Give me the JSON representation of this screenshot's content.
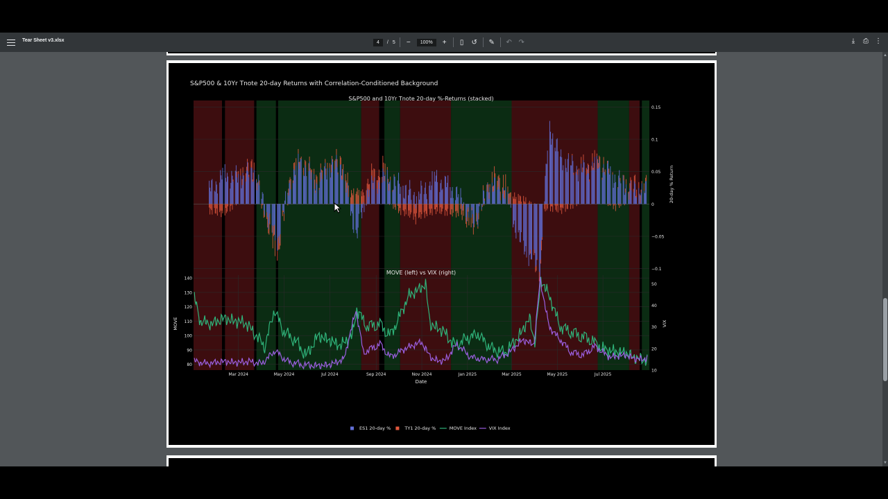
{
  "toolbar": {
    "title": "Tear Sheet v3.xlsx",
    "page_current": "4",
    "page_total": "5",
    "page_sep": "/",
    "zoom": "100%",
    "icons": [
      "menu-icon",
      "zoom-out-icon",
      "zoom-in-icon",
      "fit-page-icon",
      "rotate-icon",
      "annotate-icon",
      "undo-icon",
      "redo-icon",
      "download-icon",
      "print-icon",
      "more-icon"
    ]
  },
  "chart_data": {
    "type": "line",
    "title": "S&P500 & 10Yr Tnote 20-day Returns with Correlation-Conditioned Background",
    "panels": [
      {
        "subtitle": "S&P500 and 10Yr Tnote 20-day %-Returns (stacked)",
        "type": "bar",
        "ylabel": "20-day % Return",
        "y_side": "right",
        "ylim": [
          -0.11,
          0.16
        ],
        "yticks": [
          0.15,
          0.1,
          0.05,
          0,
          -0.05,
          -0.1
        ],
        "ytick_labels": [
          "0.15",
          "0.1",
          "0.05",
          "0",
          "−0.05",
          "−0.1"
        ],
        "series": [
          {
            "name": "ES1 20-day %",
            "color": "#6370d8",
            "points": [
              [
                "2024-01-22",
                0.02
              ],
              [
                "2024-02-10",
                0.045
              ],
              [
                "2024-03-01",
                0.04
              ],
              [
                "2024-03-22",
                0.05
              ],
              [
                "2024-04-12",
                -0.03
              ],
              [
                "2024-04-22",
                -0.06
              ],
              [
                "2024-05-10",
                0.04
              ],
              [
                "2024-05-24",
                0.065
              ],
              [
                "2024-06-14",
                0.03
              ],
              [
                "2024-06-28",
                0.055
              ],
              [
                "2024-07-16",
                0.06
              ],
              [
                "2024-08-06",
                -0.05
              ],
              [
                "2024-08-20",
                0.02
              ],
              [
                "2024-09-10",
                0.04
              ],
              [
                "2024-10-01",
                0.03
              ],
              [
                "2024-10-25",
                0.01
              ],
              [
                "2024-11-20",
                0.04
              ],
              [
                "2024-12-16",
                0.02
              ],
              [
                "2025-01-10",
                -0.03
              ],
              [
                "2025-01-31",
                0.03
              ],
              [
                "2025-02-20",
                0.02
              ],
              [
                "2025-03-13",
                -0.06
              ],
              [
                "2025-04-08",
                -0.1
              ],
              [
                "2025-04-20",
                0.12
              ],
              [
                "2025-05-06",
                0.07
              ],
              [
                "2025-06-02",
                0.05
              ],
              [
                "2025-06-27",
                0.06
              ],
              [
                "2025-07-18",
                0.04
              ],
              [
                "2025-08-08",
                0.02
              ],
              [
                "2025-08-28",
                0.02
              ]
            ]
          },
          {
            "name": "TY1 20-day %",
            "color": "#e1583e",
            "points": [
              [
                "2024-01-22",
                -0.01
              ],
              [
                "2024-02-10",
                -0.015
              ],
              [
                "2024-03-01",
                0.005
              ],
              [
                "2024-03-22",
                0.01
              ],
              [
                "2024-04-12",
                -0.015
              ],
              [
                "2024-04-22",
                -0.02
              ],
              [
                "2024-05-10",
                0.01
              ],
              [
                "2024-05-24",
                0.005
              ],
              [
                "2024-06-14",
                0.01
              ],
              [
                "2024-06-28",
                0.005
              ],
              [
                "2024-07-16",
                0.01
              ],
              [
                "2024-08-06",
                0.02
              ],
              [
                "2024-08-20",
                0.015
              ],
              [
                "2024-09-10",
                0.015
              ],
              [
                "2024-10-01",
                -0.01
              ],
              [
                "2024-10-25",
                -0.02
              ],
              [
                "2024-11-20",
                -0.01
              ],
              [
                "2024-12-16",
                -0.015
              ],
              [
                "2025-01-10",
                -0.01
              ],
              [
                "2025-01-31",
                0.01
              ],
              [
                "2025-02-20",
                0.015
              ],
              [
                "2025-03-13",
                0.01
              ],
              [
                "2025-04-08",
                -0.01
              ],
              [
                "2025-04-20",
                -0.005
              ],
              [
                "2025-05-06",
                -0.01
              ],
              [
                "2025-06-02",
                0.005
              ],
              [
                "2025-06-27",
                0.01
              ],
              [
                "2025-07-18",
                -0.005
              ],
              [
                "2025-08-08",
                0.01
              ],
              [
                "2025-08-28",
                0.005
              ]
            ]
          }
        ]
      },
      {
        "subtitle": "MOVE (left) vs VIX (right)",
        "type": "line",
        "xlabel": "Date",
        "ylabel_left": "MOVE",
        "ylabel_right": "VIX",
        "ylim_left": [
          76,
          142
        ],
        "ylim_right": [
          10,
          54
        ],
        "yticks_left": [
          140,
          130,
          120,
          110,
          100,
          90,
          80
        ],
        "yticks_right": [
          50,
          40,
          30,
          20,
          10
        ],
        "xlim": [
          "2024-01-01",
          "2025-09-01"
        ],
        "xticks": [
          "2024-03-01",
          "2024-05-01",
          "2024-07-01",
          "2024-09-01",
          "2024-11-01",
          "2025-01-01",
          "2025-03-01",
          "2025-05-01",
          "2025-07-01"
        ],
        "xtick_labels": [
          "Mar 2024",
          "May 2024",
          "Jul 2024",
          "Sep 2024",
          "Nov 2024",
          "Jan 2025",
          "Mar 2025",
          "May 2025",
          "Jul 2025"
        ],
        "series": [
          {
            "name": "MOVE Index",
            "color": "#2fb37a",
            "axis": "left",
            "points": [
              [
                "2024-01-02",
                126
              ],
              [
                "2024-01-10",
                110
              ],
              [
                "2024-01-25",
                108
              ],
              [
                "2024-02-10",
                112
              ],
              [
                "2024-02-25",
                110
              ],
              [
                "2024-03-10",
                109
              ],
              [
                "2024-03-25",
                100
              ],
              [
                "2024-04-05",
                92
              ],
              [
                "2024-04-18",
                118
              ],
              [
                "2024-04-30",
                103
              ],
              [
                "2024-05-15",
                97
              ],
              [
                "2024-05-31",
                86
              ],
              [
                "2024-06-15",
                100
              ],
              [
                "2024-06-30",
                97
              ],
              [
                "2024-07-15",
                93
              ],
              [
                "2024-07-31",
                100
              ],
              [
                "2024-08-06",
                118
              ],
              [
                "2024-08-20",
                106
              ],
              [
                "2024-09-05",
                108
              ],
              [
                "2024-09-20",
                100
              ],
              [
                "2024-10-01",
                112
              ],
              [
                "2024-10-15",
                128
              ],
              [
                "2024-10-31",
                133
              ],
              [
                "2024-11-06",
                136
              ],
              [
                "2024-11-12",
                108
              ],
              [
                "2024-11-30",
                103
              ],
              [
                "2024-12-15",
                93
              ],
              [
                "2024-12-31",
                98
              ],
              [
                "2025-01-15",
                101
              ],
              [
                "2025-02-01",
                91
              ],
              [
                "2025-02-20",
                88
              ],
              [
                "2025-03-10",
                99
              ],
              [
                "2025-03-25",
                112
              ],
              [
                "2025-04-01",
                95
              ],
              [
                "2025-04-09",
                139
              ],
              [
                "2025-04-20",
                128
              ],
              [
                "2025-05-05",
                106
              ],
              [
                "2025-05-25",
                101
              ],
              [
                "2025-06-15",
                97
              ],
              [
                "2025-06-30",
                91
              ],
              [
                "2025-07-15",
                89
              ],
              [
                "2025-07-31",
                88
              ],
              [
                "2025-08-15",
                84
              ],
              [
                "2025-08-31",
                83
              ]
            ]
          },
          {
            "name": "VIX Index",
            "color": "#9b5fe0",
            "axis": "right",
            "points": [
              [
                "2024-01-02",
                14
              ],
              [
                "2024-01-20",
                13
              ],
              [
                "2024-02-10",
                14
              ],
              [
                "2024-02-28",
                13.5
              ],
              [
                "2024-03-15",
                14
              ],
              [
                "2024-04-01",
                13
              ],
              [
                "2024-04-19",
                19
              ],
              [
                "2024-05-05",
                14
              ],
              [
                "2024-05-25",
                12.5
              ],
              [
                "2024-06-15",
                12
              ],
              [
                "2024-07-01",
                12.5
              ],
              [
                "2024-07-20",
                15
              ],
              [
                "2024-08-05",
                38
              ],
              [
                "2024-08-15",
                18
              ],
              [
                "2024-09-06",
                22
              ],
              [
                "2024-09-20",
                16
              ],
              [
                "2024-10-10",
                20
              ],
              [
                "2024-10-31",
                23
              ],
              [
                "2024-11-15",
                15
              ],
              [
                "2024-12-01",
                14
              ],
              [
                "2024-12-18",
                22
              ],
              [
                "2025-01-05",
                16
              ],
              [
                "2025-01-20",
                15
              ],
              [
                "2025-02-10",
                15
              ],
              [
                "2025-03-01",
                19
              ],
              [
                "2025-03-15",
                24
              ],
              [
                "2025-03-31",
                22
              ],
              [
                "2025-04-08",
                52
              ],
              [
                "2025-04-20",
                30
              ],
              [
                "2025-05-05",
                24
              ],
              [
                "2025-05-20",
                18
              ],
              [
                "2025-06-05",
                17
              ],
              [
                "2025-06-20",
                21
              ],
              [
                "2025-07-10",
                16
              ],
              [
                "2025-07-31",
                17
              ],
              [
                "2025-08-15",
                15
              ],
              [
                "2025-08-31",
                15.5
              ]
            ]
          }
        ]
      }
    ],
    "background_regimes": [
      {
        "from": "2024-01-01",
        "to": "2024-02-08",
        "color": "red"
      },
      {
        "from": "2024-02-12",
        "to": "2024-03-22",
        "color": "red"
      },
      {
        "from": "2024-03-25",
        "to": "2024-04-20",
        "color": "green"
      },
      {
        "from": "2024-04-23",
        "to": "2024-08-12",
        "color": "green"
      },
      {
        "from": "2024-08-12",
        "to": "2024-09-05",
        "color": "red"
      },
      {
        "from": "2024-09-12",
        "to": "2024-10-03",
        "color": "green"
      },
      {
        "from": "2024-10-03",
        "to": "2024-12-10",
        "color": "red"
      },
      {
        "from": "2024-12-10",
        "to": "2025-03-01",
        "color": "green"
      },
      {
        "from": "2025-03-01",
        "to": "2025-06-24",
        "color": "red"
      },
      {
        "from": "2025-06-24",
        "to": "2025-08-05",
        "color": "green"
      },
      {
        "from": "2025-08-05",
        "to": "2025-08-19",
        "color": "red"
      },
      {
        "from": "2025-08-22",
        "to": "2025-09-01",
        "color": "green"
      }
    ],
    "legend": {
      "placement": "bottom-center",
      "items": [
        {
          "label": "ES1 20-day %",
          "kind": "square",
          "color": "#6370d8"
        },
        {
          "label": "TY1 20-day %",
          "kind": "square",
          "color": "#e1583e"
        },
        {
          "label": "MOVE Index",
          "kind": "line",
          "color": "#2fb37a"
        },
        {
          "label": "VIX Index",
          "kind": "line",
          "color": "#9b5fe0"
        }
      ]
    },
    "grid": true
  }
}
